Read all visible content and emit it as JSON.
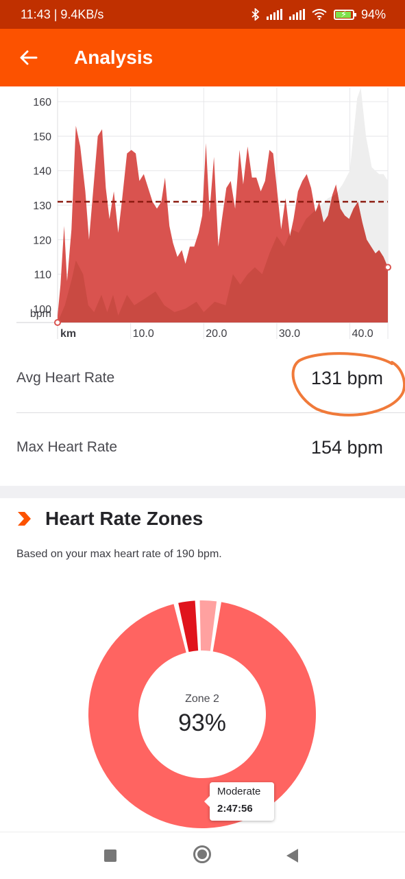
{
  "status_bar": {
    "time_speed": "11:43 | 9.4KB/s",
    "battery": "94%",
    "icons": [
      "bluetooth-icon",
      "signal-icon",
      "signal-icon",
      "wifi-icon",
      "battery-icon"
    ]
  },
  "header": {
    "title": "Analysis",
    "back_icon": "arrow-left-icon"
  },
  "chart_data": {
    "type": "area",
    "ylabel": "bpm",
    "xlabel": "km",
    "y_ticks": [
      "160",
      "150",
      "140",
      "130",
      "120",
      "110",
      "100"
    ],
    "x_ticks": [
      "10.0",
      "20.0",
      "30.0",
      "40.0"
    ],
    "ylim": [
      96,
      164
    ],
    "xlim": [
      0,
      45.2
    ],
    "average_line": 131,
    "grid": true,
    "colors": {
      "heart_rate": "#d9534f",
      "elevation": "#c94a42",
      "elevation_faded": "#eeeeee",
      "average_line": "#8b1b10"
    },
    "series": [
      {
        "values": [
          [
            0,
            98
          ],
          [
            0.4,
            107
          ],
          [
            0.9,
            124
          ],
          [
            1.3,
            108
          ],
          [
            1.9,
            123
          ],
          [
            2.5,
            153
          ],
          [
            3.1,
            147
          ],
          [
            3.8,
            134
          ],
          [
            4.3,
            120
          ],
          [
            4.9,
            135
          ],
          [
            5.5,
            150
          ],
          [
            6.1,
            152
          ],
          [
            6.6,
            135
          ],
          [
            7.1,
            126
          ],
          [
            7.7,
            134
          ],
          [
            8.3,
            122
          ],
          [
            8.8,
            131
          ],
          [
            9.5,
            145
          ],
          [
            10.1,
            146
          ],
          [
            10.7,
            145
          ],
          [
            11.2,
            137
          ],
          [
            11.8,
            139
          ],
          [
            12.4,
            135
          ],
          [
            13.0,
            131
          ],
          [
            13.6,
            129
          ],
          [
            14.2,
            131
          ],
          [
            14.7,
            138
          ],
          [
            15.3,
            124
          ],
          [
            15.8,
            119
          ],
          [
            16.4,
            115
          ],
          [
            17.0,
            117
          ],
          [
            17.5,
            113
          ],
          [
            18.1,
            118
          ],
          [
            18.7,
            118
          ],
          [
            19.3,
            122
          ],
          [
            19.8,
            127
          ],
          [
            20.3,
            148
          ],
          [
            20.8,
            128
          ],
          [
            21.4,
            144
          ],
          [
            22.0,
            118
          ],
          [
            22.5,
            126
          ],
          [
            23.1,
            135
          ],
          [
            23.7,
            137
          ],
          [
            24.3,
            129
          ],
          [
            24.9,
            146
          ],
          [
            25.4,
            136
          ],
          [
            26.0,
            147
          ],
          [
            26.6,
            138
          ],
          [
            27.2,
            138
          ],
          [
            27.8,
            134
          ],
          [
            28.4,
            137
          ],
          [
            29.0,
            146
          ],
          [
            29.5,
            145
          ],
          [
            30.1,
            133
          ],
          [
            30.6,
            123
          ],
          [
            31.2,
            132
          ],
          [
            31.8,
            121
          ],
          [
            32.3,
            126
          ],
          [
            32.9,
            134
          ],
          [
            33.5,
            137
          ],
          [
            34.1,
            139
          ],
          [
            34.7,
            135
          ],
          [
            35.3,
            128
          ],
          [
            35.8,
            131
          ],
          [
            36.4,
            125
          ],
          [
            37.0,
            127
          ],
          [
            37.6,
            133
          ],
          [
            38.1,
            136
          ],
          [
            38.7,
            129
          ],
          [
            39.3,
            127
          ],
          [
            39.9,
            126
          ],
          [
            40.5,
            129
          ],
          [
            41.1,
            131
          ],
          [
            41.7,
            125
          ],
          [
            42.3,
            120
          ],
          [
            42.9,
            118
          ],
          [
            43.5,
            116
          ],
          [
            44.0,
            117
          ],
          [
            44.6,
            115
          ],
          [
            45.2,
            112
          ]
        ]
      },
      {
        "values": [
          [
            0,
            96
          ],
          [
            1,
            101
          ],
          [
            2,
            109
          ],
          [
            2.5,
            114
          ],
          [
            3.5,
            110
          ],
          [
            4.2,
            101
          ],
          [
            5.0,
            99
          ],
          [
            6.0,
            104
          ],
          [
            6.8,
            99
          ],
          [
            7.6,
            104
          ],
          [
            8.3,
            98
          ],
          [
            9.5,
            104
          ],
          [
            10.5,
            101
          ],
          [
            12.0,
            103
          ],
          [
            13.4,
            105
          ],
          [
            14.6,
            101
          ],
          [
            16.0,
            99
          ],
          [
            17.5,
            100
          ],
          [
            19.0,
            102
          ],
          [
            20.0,
            99
          ],
          [
            21.5,
            102
          ],
          [
            23.0,
            101
          ],
          [
            24.0,
            110
          ],
          [
            25.0,
            107
          ],
          [
            26.0,
            110
          ],
          [
            27.0,
            112
          ],
          [
            28.0,
            110
          ],
          [
            29.0,
            116
          ],
          [
            30.0,
            121
          ],
          [
            31.0,
            118
          ],
          [
            32.0,
            123
          ],
          [
            33.0,
            122
          ],
          [
            34.0,
            126
          ],
          [
            35.0,
            128
          ],
          [
            36.0,
            130
          ],
          [
            37.0,
            132
          ],
          [
            38.0,
            133
          ],
          [
            39.0,
            136
          ],
          [
            40.0,
            140
          ],
          [
            41.0,
            161
          ],
          [
            41.5,
            164
          ],
          [
            42.2,
            150
          ],
          [
            43.0,
            141
          ],
          [
            44.0,
            139
          ],
          [
            44.6,
            139
          ],
          [
            45.2,
            137
          ]
        ]
      }
    ]
  },
  "stats": [
    {
      "label": "Avg Heart Rate",
      "value": "131 bpm"
    },
    {
      "label": "Max Heart Rate",
      "value": "154 bpm"
    }
  ],
  "zones": {
    "title": "Heart Rate Zones",
    "subtitle": "Based on your max heart rate of 190 bpm.",
    "center_label": "Zone 2",
    "center_value": "93%",
    "tooltip": {
      "name": "Moderate",
      "time": "2:47:56"
    },
    "chart_data": {
      "type": "pie",
      "series": [
        {
          "values": [
            93,
            3,
            3
          ]
        }
      ],
      "colors": [
        "#ff6461",
        "#e0141c",
        "#ffa1a0"
      ]
    }
  },
  "nav": {
    "icons": [
      "recents-square-icon",
      "home-circle-icon",
      "back-triangle-icon"
    ]
  }
}
